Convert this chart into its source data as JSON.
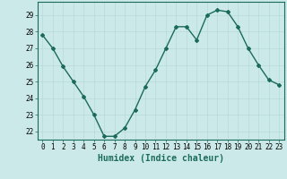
{
  "x": [
    0,
    1,
    2,
    3,
    4,
    5,
    6,
    7,
    8,
    9,
    10,
    11,
    12,
    13,
    14,
    15,
    16,
    17,
    18,
    19,
    20,
    21,
    22,
    23
  ],
  "y": [
    27.8,
    27.0,
    25.9,
    25.0,
    24.1,
    23.0,
    21.7,
    21.7,
    22.2,
    23.3,
    24.7,
    25.7,
    27.0,
    28.3,
    28.3,
    27.5,
    29.0,
    29.3,
    29.2,
    28.3,
    27.0,
    26.0,
    25.1,
    24.8
  ],
  "line_color": "#1a6b5a",
  "marker": "D",
  "marker_size": 2.0,
  "bg_color": "#cce9e9",
  "grid_color": "#b8d8d8",
  "xlabel": "Humidex (Indice chaleur)",
  "ylim": [
    21.5,
    29.8
  ],
  "xlim": [
    -0.5,
    23.5
  ],
  "yticks": [
    22,
    23,
    24,
    25,
    26,
    27,
    28,
    29
  ],
  "xticks": [
    0,
    1,
    2,
    3,
    4,
    5,
    6,
    7,
    8,
    9,
    10,
    11,
    12,
    13,
    14,
    15,
    16,
    17,
    18,
    19,
    20,
    21,
    22,
    23
  ],
  "tick_fontsize": 5.5,
  "xlabel_fontsize": 7.0,
  "linewidth": 1.0
}
